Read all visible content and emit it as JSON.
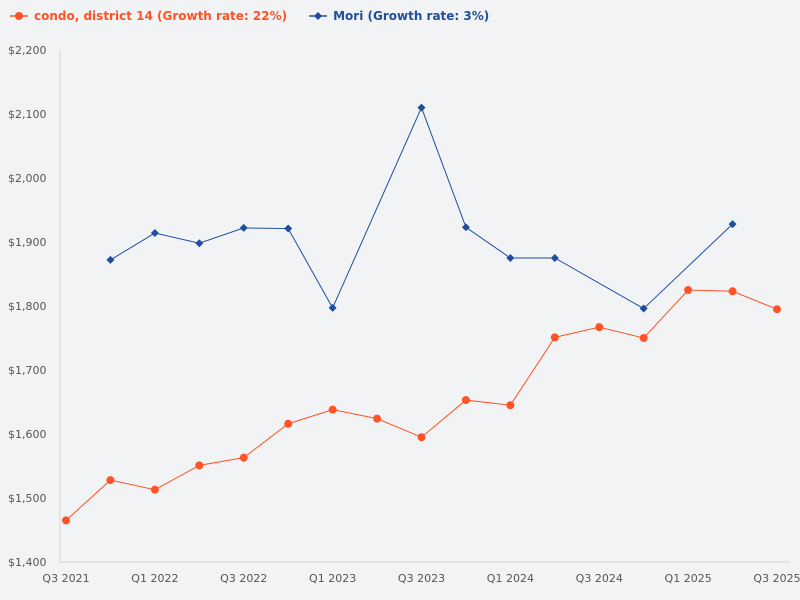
{
  "chart_data": {
    "type": "line",
    "title": "",
    "xlabel": "",
    "ylabel": "",
    "ylim": [
      1400,
      2200
    ],
    "y_ticks": [
      "$1,400",
      "$1,500",
      "$1,600",
      "$1,700",
      "$1,800",
      "$1,900",
      "$2,000",
      "$2,100",
      "$2,200"
    ],
    "y_tick_values": [
      1400,
      1500,
      1600,
      1700,
      1800,
      1900,
      2000,
      2100,
      2200
    ],
    "x": [
      "Q3 2021",
      "Q4 2021",
      "Q1 2022",
      "Q2 2022",
      "Q3 2022",
      "Q4 2022",
      "Q1 2023",
      "Q2 2023",
      "Q3 2023",
      "Q4 2023",
      "Q1 2024",
      "Q2 2024",
      "Q3 2024",
      "Q4 2024",
      "Q1 2025",
      "Q2 2025",
      "Q3 2025"
    ],
    "x_tick_labels": [
      "Q3 2021",
      "",
      "Q1 2022",
      "",
      "Q3 2022",
      "",
      "Q1 2023",
      "",
      "Q3 2023",
      "",
      "Q1 2024",
      "",
      "Q3 2024",
      "",
      "Q1 2025",
      "",
      "Q3 2025"
    ],
    "grid": false,
    "legend_position": "top-left",
    "series": [
      {
        "name": "condo, district 14 (Growth rate: 22%)",
        "color": "#ff5326",
        "marker": "circle",
        "values": [
          1465,
          1528,
          1513,
          1551,
          1563,
          1616,
          1638,
          1624,
          1595,
          1653,
          1645,
          1751,
          1767,
          1750,
          1825,
          1823,
          1795
        ]
      },
      {
        "name": "Mori (Growth rate: 3%)",
        "color": "#1f4e9c",
        "marker": "diamond",
        "values": [
          null,
          1872,
          1914,
          1898,
          1922,
          1921,
          1797,
          null,
          2110,
          1923,
          1875,
          1875,
          null,
          1796,
          null,
          1928,
          null
        ]
      }
    ]
  }
}
